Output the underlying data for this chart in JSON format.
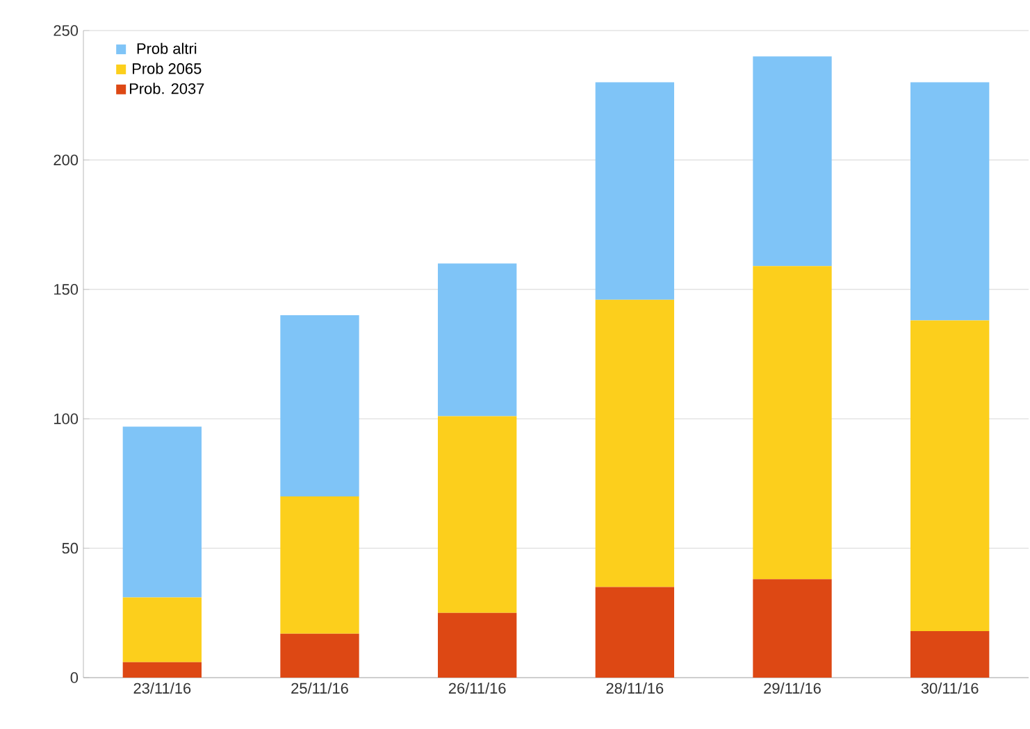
{
  "chart_data": {
    "type": "bar",
    "stacked": true,
    "categories": [
      "23/11/16",
      "25/11/16",
      "26/11/16",
      "28/11/16",
      "29/11/16",
      "30/11/16"
    ],
    "series": [
      {
        "name": "Prob. 2037",
        "color": "#dd4814",
        "values": [
          6,
          17,
          25,
          35,
          38,
          18
        ]
      },
      {
        "name": "Prob 2065",
        "color": "#fccf1c",
        "values": [
          25,
          53,
          76,
          111,
          121,
          120
        ]
      },
      {
        "name": "Prob altri",
        "color": "#7fc4f7",
        "values": [
          66,
          70,
          59,
          84,
          81,
          92
        ]
      }
    ],
    "ylim": [
      0,
      250
    ],
    "yticks": [
      0,
      50,
      100,
      150,
      200,
      250
    ],
    "grid": "y",
    "legend": "top left"
  }
}
